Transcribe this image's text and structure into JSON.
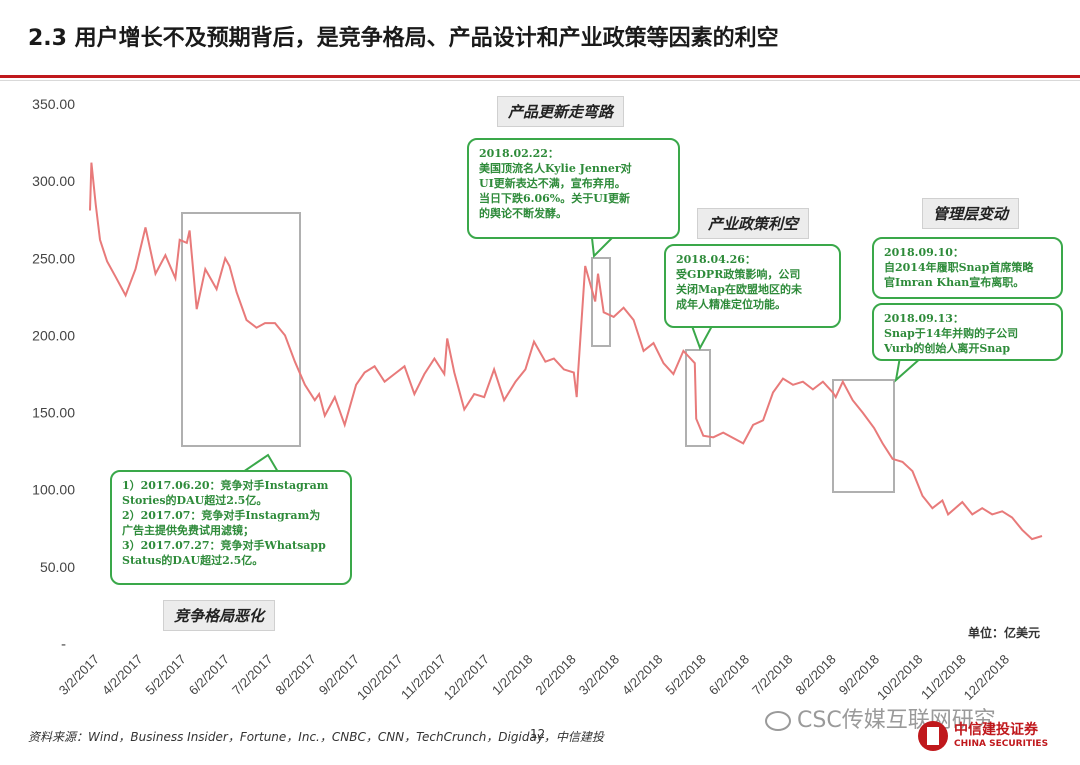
{
  "slide": {
    "title": "2.3 用户增长不及预期背后，是竞争格局、产品设计和产业政策等因素的利空",
    "unit": "单位：亿美元",
    "source": "资料来源：Wind，Business Insider，Fortune，Inc.，CNBC，CNN，TechCrunch，Digiday，中信建投",
    "page_number": "12",
    "watermark": "CSC传媒互联网研究",
    "logo_cn": "中信建投证券",
    "logo_en": "CHINA SECURITIES"
  },
  "tags": {
    "competition": "竞争格局恶化",
    "product": "产品更新走弯路",
    "policy": "产业政策利空",
    "management": "管理层变动"
  },
  "bubbles": {
    "competition": [
      "1）2017.06.20：竞争对手Instagram",
      "Stories的DAU超过2.5亿。",
      "2）2017.07：竞争对手Instagram为",
      "广告主提供免费试用滤镜；",
      "3）2017.07.27：竞争对手Whatsapp",
      "Status的DAU超过2.5亿。"
    ],
    "product": [
      "2018.02.22：",
      "美国顶流名人Kylie Jenner对",
      "UI更新表达不满，宣布弃用。",
      "当日下跌6.06%。关于UI更新",
      "的舆论不断发酵。"
    ],
    "policy": [
      "2018.04.26：",
      "受GDPR政策影响，公司",
      "关闭Map在欧盟地区的未",
      "成年人精准定位功能。"
    ],
    "management1": [
      "2018.09.10：",
      "自2014年履职Snap首席策略",
      "官Imran Khan宣布离职。"
    ],
    "management2": [
      "2018.09.13：",
      "Snap于14年并购的子公司",
      "Vurb的创始人离开Snap"
    ]
  },
  "colors": {
    "line": "#e87a7a",
    "accent": "#c0181c",
    "bubble_border": "#3aa84a",
    "bubble_text": "#2e8b3a",
    "highlight_box": "#b0b0b0"
  },
  "chart_data": {
    "type": "line",
    "ylim": [
      0,
      350
    ],
    "yticks": [
      50,
      100,
      150,
      200,
      250,
      300,
      350
    ],
    "ytick_labels": [
      "50.00",
      "100.00",
      "150.00",
      "200.00",
      "250.00",
      "300.00",
      "350.00"
    ],
    "ytick_zero_label": "-",
    "xlim": [
      "2017-03-02",
      "2018-12-31"
    ],
    "xtick_labels": [
      "3/2/2017",
      "4/2/2017",
      "5/2/2017",
      "6/2/2017",
      "7/2/2017",
      "8/2/2017",
      "9/2/2017",
      "10/2/2017",
      "11/2/2017",
      "12/2/2017",
      "1/2/2018",
      "2/2/2018",
      "3/2/2018",
      "4/2/2018",
      "5/2/2018",
      "6/2/2018",
      "7/2/2018",
      "8/2/2018",
      "9/2/2018",
      "10/2/2018",
      "11/2/2018",
      "12/2/2018"
    ],
    "grid": false,
    "series": [
      {
        "x": [
          "2017-03-02",
          "2017-03-03",
          "2017-03-06",
          "2017-03-09",
          "2017-03-14",
          "2017-03-20",
          "2017-03-27",
          "2017-04-03",
          "2017-04-10",
          "2017-04-17",
          "2017-04-24",
          "2017-05-01",
          "2017-05-04",
          "2017-05-09",
          "2017-05-11",
          "2017-05-16",
          "2017-05-22",
          "2017-05-30",
          "2017-06-05",
          "2017-06-08",
          "2017-06-13",
          "2017-06-20",
          "2017-06-27",
          "2017-07-03",
          "2017-07-10",
          "2017-07-17",
          "2017-07-24",
          "2017-07-31",
          "2017-08-07",
          "2017-08-10",
          "2017-08-14",
          "2017-08-21",
          "2017-08-28",
          "2017-09-05",
          "2017-09-11",
          "2017-09-18",
          "2017-09-25",
          "2017-10-02",
          "2017-10-09",
          "2017-10-16",
          "2017-10-23",
          "2017-10-30",
          "2017-11-06",
          "2017-11-08",
          "2017-11-13",
          "2017-11-20",
          "2017-11-27",
          "2017-12-04",
          "2017-12-11",
          "2017-12-18",
          "2017-12-26",
          "2018-01-02",
          "2018-01-08",
          "2018-01-16",
          "2018-01-22",
          "2018-01-29",
          "2018-02-05",
          "2018-02-07",
          "2018-02-08",
          "2018-02-13",
          "2018-02-20",
          "2018-02-22",
          "2018-02-26",
          "2018-03-05",
          "2018-03-12",
          "2018-03-19",
          "2018-03-26",
          "2018-04-02",
          "2018-04-09",
          "2018-04-16",
          "2018-04-23",
          "2018-04-26",
          "2018-05-01",
          "2018-05-02",
          "2018-05-07",
          "2018-05-14",
          "2018-05-21",
          "2018-05-29",
          "2018-06-04",
          "2018-06-11",
          "2018-06-18",
          "2018-06-25",
          "2018-07-02",
          "2018-07-09",
          "2018-07-16",
          "2018-07-23",
          "2018-07-30",
          "2018-08-06",
          "2018-08-08",
          "2018-08-13",
          "2018-08-20",
          "2018-08-27",
          "2018-09-04",
          "2018-09-10",
          "2018-09-17",
          "2018-09-24",
          "2018-10-01",
          "2018-10-08",
          "2018-10-15",
          "2018-10-22",
          "2018-10-26",
          "2018-11-05",
          "2018-11-12",
          "2018-11-19",
          "2018-11-26",
          "2018-12-03",
          "2018-12-10",
          "2018-12-17",
          "2018-12-24",
          "2018-12-31"
        ],
        "values": [
          281,
          312,
          285,
          262,
          248,
          238,
          226,
          243,
          270,
          240,
          252,
          237,
          262,
          260,
          268,
          217,
          243,
          230,
          250,
          245,
          228,
          210,
          205,
          208,
          208,
          200,
          183,
          168,
          158,
          162,
          148,
          160,
          142,
          168,
          176,
          180,
          170,
          175,
          180,
          162,
          175,
          185,
          175,
          198,
          176,
          152,
          162,
          160,
          178,
          158,
          170,
          178,
          196,
          183,
          185,
          178,
          176,
          160,
          176,
          245,
          222,
          240,
          215,
          212,
          218,
          210,
          190,
          195,
          182,
          175,
          190,
          187,
          182,
          146,
          135,
          134,
          137,
          133,
          130,
          142,
          145,
          163,
          172,
          168,
          170,
          165,
          170,
          163,
          160,
          170,
          158,
          150,
          140,
          130,
          120,
          118,
          112,
          96,
          88,
          93,
          84,
          92,
          84,
          88,
          84,
          86,
          82,
          74,
          68,
          70
        ]
      }
    ]
  }
}
